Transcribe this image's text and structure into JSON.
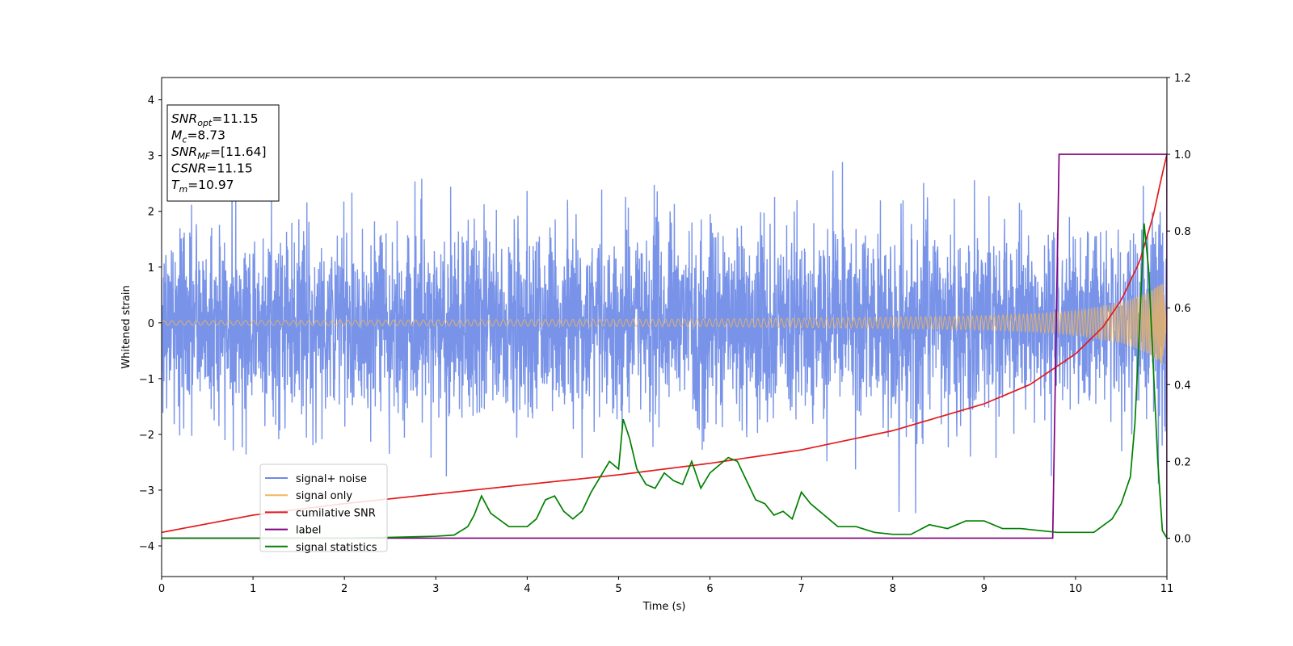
{
  "chart_data": {
    "type": "line",
    "xlabel": "Time (s)",
    "ylabel": "Whitened strain",
    "xlim": [
      0,
      11
    ],
    "ylim": [
      -4.55,
      4.4
    ],
    "y2lim": [
      -0.1,
      1.2
    ],
    "xticks": [
      0,
      1,
      2,
      3,
      4,
      5,
      6,
      7,
      8,
      9,
      10,
      11
    ],
    "yticks": [
      -4,
      -3,
      -2,
      -1,
      0,
      1,
      2,
      3,
      4
    ],
    "y2ticks": [
      "0.0",
      "0.2",
      "0.4",
      "0.6",
      "0.8",
      "1.0",
      "1.2"
    ],
    "grid": false,
    "legend_position": "lower-left",
    "annotation": {
      "position": "top-left",
      "lines": [
        {
          "base": "SNR",
          "sub": "opt",
          "value": "=11.15"
        },
        {
          "base": "M",
          "sub": "c",
          "value": "=8.73"
        },
        {
          "base": "SNR",
          "sub": "MF",
          "value": "=[11.64]"
        },
        {
          "base": "CSNR",
          "sub": "",
          "value": "=11.15"
        },
        {
          "base": "T",
          "sub": "m",
          "value": "=10.97"
        }
      ]
    },
    "series": [
      {
        "name": "signal+ noise",
        "color": "#6d8ae6",
        "axis": "left",
        "kind": "noisy-strain"
      },
      {
        "name": "signal only",
        "color": "#f4b55a",
        "axis": "left",
        "kind": "chirp",
        "envelope": {
          "x": [
            0,
            2,
            4,
            6,
            8,
            9,
            9.5,
            10,
            10.5,
            10.8,
            10.95,
            11
          ],
          "y": [
            0.04,
            0.05,
            0.06,
            0.07,
            0.1,
            0.13,
            0.16,
            0.22,
            0.36,
            0.55,
            0.75,
            0.0
          ]
        }
      },
      {
        "name": "cumilative SNR",
        "color": "#e31a1c",
        "axis": "right",
        "x": [
          0,
          1,
          2,
          3,
          4,
          5,
          6,
          7,
          8,
          9,
          9.5,
          10,
          10.3,
          10.5,
          10.7,
          10.85,
          10.95,
          11
        ],
        "y": [
          0.015,
          0.06,
          0.09,
          0.115,
          0.14,
          0.165,
          0.195,
          0.23,
          0.28,
          0.35,
          0.4,
          0.48,
          0.55,
          0.62,
          0.72,
          0.84,
          0.95,
          1.0
        ]
      },
      {
        "name": "label",
        "color": "#800080",
        "axis": "right",
        "x": [
          0,
          9.75,
          9.82,
          10.95,
          11,
          11
        ],
        "y": [
          0,
          0,
          1,
          1,
          1,
          0
        ]
      },
      {
        "name": "signal statistics",
        "color": "#008000",
        "axis": "right",
        "x": [
          0,
          0.5,
          1,
          1.5,
          2,
          2.5,
          3,
          3.2,
          3.35,
          3.42,
          3.5,
          3.6,
          3.8,
          4.0,
          4.1,
          4.2,
          4.3,
          4.4,
          4.5,
          4.6,
          4.7,
          4.8,
          4.9,
          5.0,
          5.05,
          5.12,
          5.2,
          5.3,
          5.4,
          5.5,
          5.6,
          5.7,
          5.8,
          5.9,
          6.0,
          6.1,
          6.2,
          6.3,
          6.4,
          6.5,
          6.6,
          6.7,
          6.8,
          6.9,
          7.0,
          7.1,
          7.2,
          7.3,
          7.4,
          7.6,
          7.8,
          8.0,
          8.2,
          8.4,
          8.6,
          8.8,
          9.0,
          9.2,
          9.4,
          9.6,
          9.8,
          10.0,
          10.2,
          10.4,
          10.5,
          10.6,
          10.65,
          10.7,
          10.75,
          10.8,
          10.85,
          10.9,
          10.95,
          11
        ],
        "y": [
          0,
          0,
          0,
          0,
          0,
          0.002,
          0.005,
          0.008,
          0.03,
          0.06,
          0.11,
          0.065,
          0.03,
          0.03,
          0.05,
          0.1,
          0.11,
          0.07,
          0.05,
          0.07,
          0.12,
          0.16,
          0.2,
          0.18,
          0.31,
          0.26,
          0.18,
          0.14,
          0.13,
          0.17,
          0.15,
          0.14,
          0.2,
          0.13,
          0.17,
          0.19,
          0.21,
          0.2,
          0.15,
          0.1,
          0.09,
          0.06,
          0.07,
          0.05,
          0.12,
          0.09,
          0.07,
          0.05,
          0.03,
          0.03,
          0.015,
          0.01,
          0.01,
          0.035,
          0.025,
          0.045,
          0.045,
          0.025,
          0.025,
          0.02,
          0.015,
          0.015,
          0.015,
          0.05,
          0.09,
          0.16,
          0.3,
          0.55,
          0.82,
          0.7,
          0.45,
          0.2,
          0.02,
          0.0
        ]
      }
    ]
  }
}
